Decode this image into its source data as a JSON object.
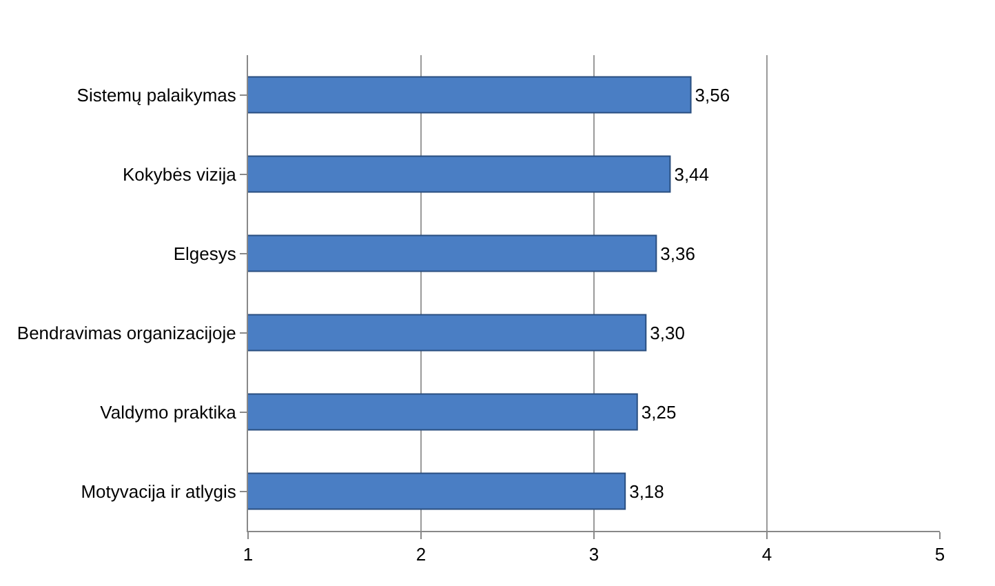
{
  "chart_data": {
    "type": "bar",
    "orientation": "horizontal",
    "categories": [
      "Sistemų palaikymas",
      "Kokybės vizija",
      "Elgesys",
      "Bendravimas organizacijoje",
      "Valdymo praktika",
      "Motyvacija ir atlygis"
    ],
    "values": [
      3.56,
      3.44,
      3.36,
      3.3,
      3.25,
      3.18
    ],
    "value_labels": [
      "3,56",
      "3,44",
      "3,36",
      "3,30",
      "3,25",
      "3,18"
    ],
    "color": "#4a7ec4",
    "xlim": [
      1,
      5
    ],
    "xticks": [
      1,
      2,
      3,
      4,
      5
    ],
    "grid": "x"
  }
}
